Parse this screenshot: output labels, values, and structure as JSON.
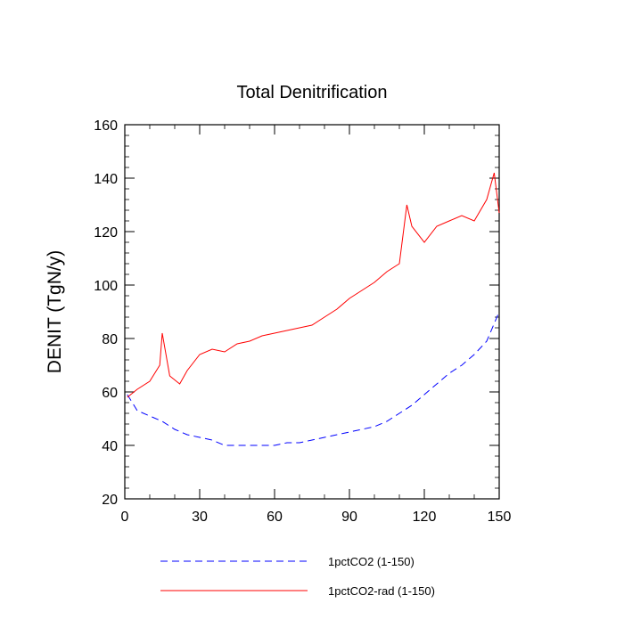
{
  "chart_data": {
    "type": "line",
    "title": "Total Denitrification",
    "xlabel": "",
    "ylabel": "DENIT  (TgN/y)",
    "xlim": [
      0,
      150
    ],
    "ylim": [
      20,
      160
    ],
    "x_ticks": [
      0,
      30,
      60,
      90,
      120,
      150
    ],
    "y_ticks": [
      20,
      40,
      60,
      80,
      100,
      120,
      140,
      160
    ],
    "x_tick_labels": [
      "0",
      "30",
      "60",
      "90",
      "120",
      "150"
    ],
    "y_tick_labels": [
      "20",
      "40",
      "60",
      "80",
      "100",
      "120",
      "140",
      "160"
    ],
    "grid": false,
    "legend_position": "bottom",
    "series": [
      {
        "name": "1pctCO2 (1-150)",
        "color": "#0000ff",
        "style": "dashed",
        "x": [
          1,
          5,
          10,
          15,
          20,
          25,
          30,
          35,
          40,
          45,
          50,
          55,
          60,
          65,
          70,
          75,
          80,
          85,
          90,
          95,
          100,
          105,
          110,
          115,
          120,
          125,
          130,
          135,
          140,
          145,
          150
        ],
        "values": [
          59,
          53,
          51,
          49,
          46,
          44,
          43,
          42,
          40,
          40,
          40,
          40,
          40,
          41,
          41,
          42,
          43,
          44,
          45,
          46,
          47,
          49,
          52,
          55,
          59,
          63,
          67,
          70,
          74,
          79,
          90
        ]
      },
      {
        "name": "1pctCO2-rad (1-150)",
        "color": "#ff0000",
        "style": "solid",
        "x": [
          1,
          5,
          10,
          14,
          15,
          18,
          22,
          25,
          30,
          35,
          40,
          45,
          50,
          55,
          60,
          65,
          70,
          75,
          80,
          85,
          90,
          95,
          100,
          105,
          110,
          113,
          115,
          120,
          125,
          130,
          135,
          140,
          145,
          148,
          150
        ],
        "values": [
          58,
          61,
          64,
          70,
          82,
          66,
          63,
          68,
          74,
          76,
          75,
          78,
          79,
          81,
          82,
          83,
          84,
          85,
          88,
          91,
          95,
          98,
          101,
          105,
          108,
          130,
          122,
          116,
          122,
          124,
          126,
          124,
          132,
          142,
          127
        ]
      }
    ]
  }
}
